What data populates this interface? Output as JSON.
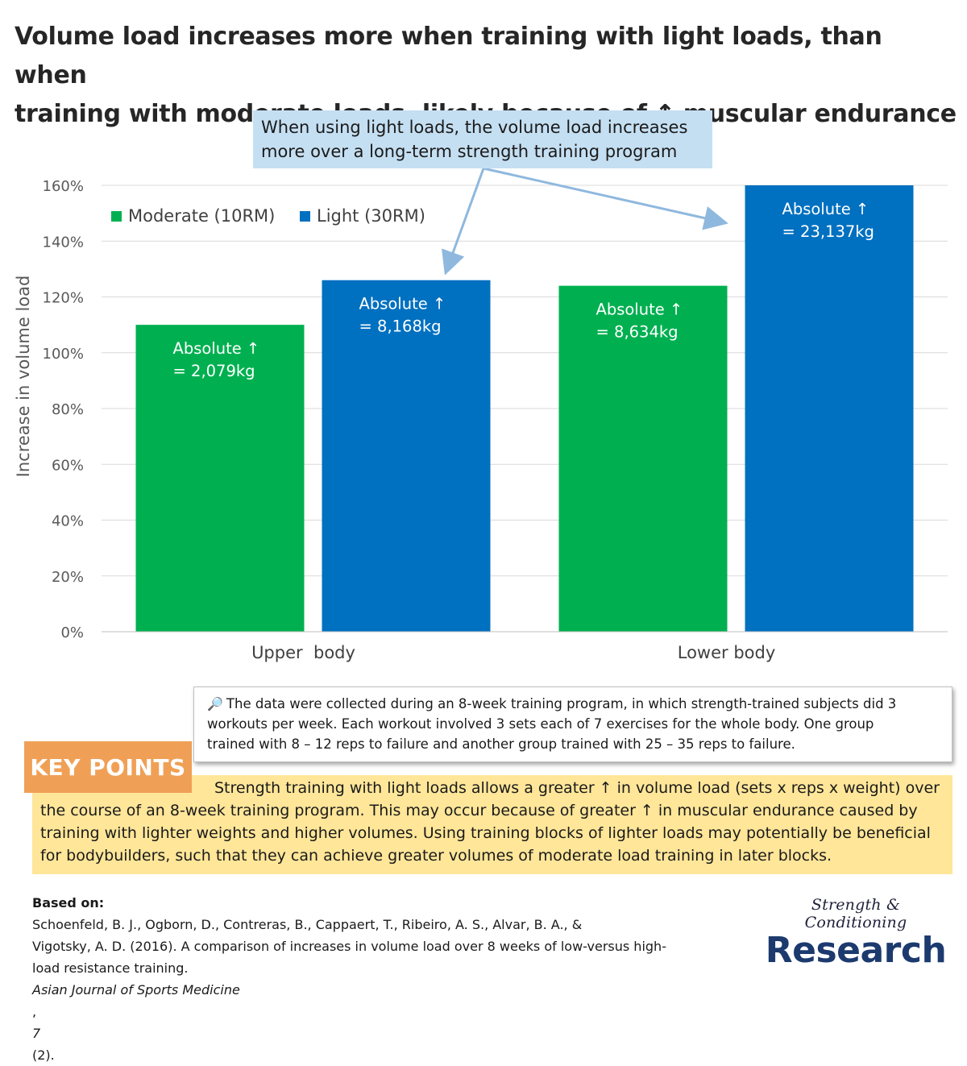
{
  "title": {
    "line1": "Volume load increases more when training with light loads, than when",
    "line2": "training with moderate loads, likely because of ↑ muscular endurance"
  },
  "callout": {
    "line1": "When using light loads, the volume load increases",
    "line2": "more over a long-term strength training program"
  },
  "chart_data": {
    "type": "bar",
    "categories": [
      "Upper  body",
      "Lower body"
    ],
    "series": [
      {
        "name": "Moderate (10RM)",
        "color": "#00b050",
        "values": [
          110,
          124
        ],
        "labels": [
          [
            "Absolute ↑",
            "= 2,079kg"
          ],
          [
            "Absolute ↑",
            "= 8,634kg"
          ]
        ]
      },
      {
        "name": "Light (30RM)",
        "color": "#0070c0",
        "values": [
          126,
          160
        ],
        "labels": [
          [
            "Absolute ↑",
            "= 8,168kg"
          ],
          [
            "Absolute ↑",
            "= 23,137kg"
          ]
        ]
      }
    ],
    "ylabel": "Increase in volume load",
    "ylim": [
      0,
      160
    ],
    "yticks": [
      0,
      20,
      40,
      60,
      80,
      100,
      120,
      140,
      160
    ],
    "ytick_suffix": "%",
    "grid": true,
    "legend": "top-left"
  },
  "info": {
    "icon": "magnifier-icon",
    "line1": "The data were collected during an 8-week training program, in which strength-trained subjects did 3",
    "line2": "workouts per week. Each workout involved 3 sets each of 7 exercises for the whole body. One group",
    "line3": "trained with 8 – 12 reps to failure and another group trained with 25 – 35 reps to failure."
  },
  "key_points": {
    "label": "KEY POINTS",
    "line1": "Strength training with light loads allows a greater ↑ in volume load (sets x reps x weight) over",
    "line2": "the course of an 8-week training program. This may occur because of greater ↑ in muscular endurance caused by",
    "line3": "training with lighter weights and higher volumes. Using training blocks of lighter loads may potentially be beneficial",
    "line4": "for bodybuilders, such that they can achieve greater volumes of moderate load training in later blocks."
  },
  "reference": {
    "prefix": "Based on:",
    "line1": " Schoenfeld, B. J., Ogborn, D., Contreras, B., Cappaert, T., Ribeiro, A. S., Alvar, B. A., &",
    "line2": "Vigotsky, A. D. (2016). A comparison of increases in volume load over 8 weeks of low-versus high-",
    "line3a": "load resistance training. ",
    "journal": "Asian Journal of Sports Medicine",
    "line3b": ", ",
    "volume": "7",
    "line3c": "(2)."
  },
  "logo": {
    "script": "Strength & Conditioning",
    "big": "Research"
  }
}
